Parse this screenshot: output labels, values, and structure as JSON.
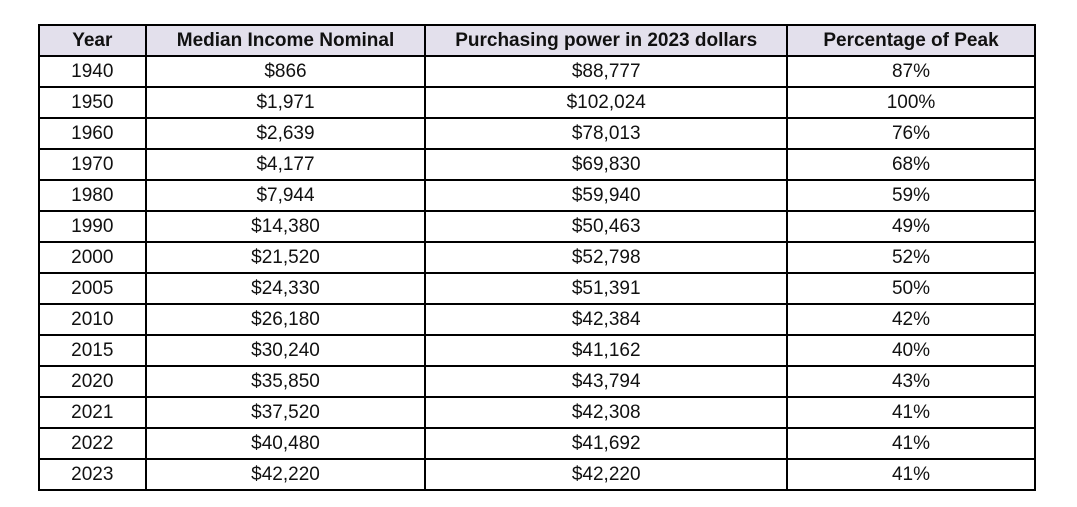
{
  "colors": {
    "header_bg": "#e3e0ec",
    "border": "#000000",
    "page_bg": "#ffffff",
    "text": "#111111"
  },
  "chart_data": {
    "type": "table",
    "title": "",
    "columns": [
      "Year",
      "Median Income Nominal",
      "Purchasing power in 2023 dollars",
      "Percentage of Peak"
    ],
    "rows": [
      [
        "1940",
        "$866",
        "$88,777",
        "87%"
      ],
      [
        "1950",
        "$1,971",
        "$102,024",
        "100%"
      ],
      [
        "1960",
        "$2,639",
        "$78,013",
        "76%"
      ],
      [
        "1970",
        "$4,177",
        "$69,830",
        "68%"
      ],
      [
        "1980",
        "$7,944",
        "$59,940",
        "59%"
      ],
      [
        "1990",
        "$14,380",
        "$50,463",
        "49%"
      ],
      [
        "2000",
        "$21,520",
        "$52,798",
        "52%"
      ],
      [
        "2005",
        "$24,330",
        "$51,391",
        "50%"
      ],
      [
        "2010",
        "$26,180",
        "$42,384",
        "42%"
      ],
      [
        "2015",
        "$30,240",
        "$41,162",
        "40%"
      ],
      [
        "2020",
        "$35,850",
        "$43,794",
        "43%"
      ],
      [
        "2021",
        "$37,520",
        "$42,308",
        "41%"
      ],
      [
        "2022",
        "$40,480",
        "$41,692",
        "41%"
      ],
      [
        "2023",
        "$42,220",
        "$42,220",
        "41%"
      ]
    ]
  }
}
